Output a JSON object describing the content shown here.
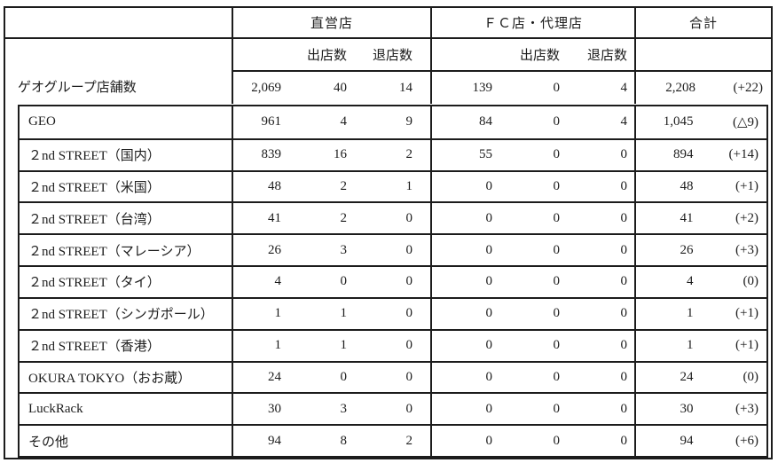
{
  "page": {
    "background": "#ffffff",
    "border_color": "#1c1c1c",
    "text_color": "#1c1c1c"
  },
  "table": {
    "header": {
      "groups": [
        {
          "label": "直営店",
          "open_label": "出店数",
          "close_label": "退店数"
        },
        {
          "label": "ＦＣ店・代理店",
          "open_label": "出店数",
          "close_label": "退店数"
        },
        {
          "label": "合計"
        }
      ]
    },
    "summary_row": {
      "label": "ゲオグループ店舗数",
      "direct_total": "2,069",
      "direct_open": "40",
      "direct_close": "14",
      "fc_total": "139",
      "fc_open": "0",
      "fc_close": "4",
      "total": "2,208",
      "change": "(+22)"
    },
    "rows": [
      {
        "label": "GEO",
        "direct_total": "961",
        "direct_open": "4",
        "direct_close": "9",
        "fc_total": "84",
        "fc_open": "0",
        "fc_close": "4",
        "total": "1,045",
        "change": "(△9)"
      },
      {
        "label": "２nd STREET（国内）",
        "direct_total": "839",
        "direct_open": "16",
        "direct_close": "2",
        "fc_total": "55",
        "fc_open": "0",
        "fc_close": "0",
        "total": "894",
        "change": "(+14)"
      },
      {
        "label": "２nd STREET（米国）",
        "direct_total": "48",
        "direct_open": "2",
        "direct_close": "1",
        "fc_total": "0",
        "fc_open": "0",
        "fc_close": "0",
        "total": "48",
        "change": "(+1)"
      },
      {
        "label": "２nd STREET（台湾）",
        "direct_total": "41",
        "direct_open": "2",
        "direct_close": "0",
        "fc_total": "0",
        "fc_open": "0",
        "fc_close": "0",
        "total": "41",
        "change": "(+2)"
      },
      {
        "label": "２nd STREET（マレーシア）",
        "direct_total": "26",
        "direct_open": "3",
        "direct_close": "0",
        "fc_total": "0",
        "fc_open": "0",
        "fc_close": "0",
        "total": "26",
        "change": "(+3)"
      },
      {
        "label": "２nd STREET（タイ）",
        "direct_total": "4",
        "direct_open": "0",
        "direct_close": "0",
        "fc_total": "0",
        "fc_open": "0",
        "fc_close": "0",
        "total": "4",
        "change": "(0)"
      },
      {
        "label": "２nd STREET（シンガポール）",
        "direct_total": "1",
        "direct_open": "1",
        "direct_close": "0",
        "fc_total": "0",
        "fc_open": "0",
        "fc_close": "0",
        "total": "1",
        "change": "(+1)"
      },
      {
        "label": "２nd STREET（香港）",
        "direct_total": "1",
        "direct_open": "1",
        "direct_close": "0",
        "fc_total": "0",
        "fc_open": "0",
        "fc_close": "0",
        "total": "1",
        "change": "(+1)"
      },
      {
        "label": "OKURA TOKYO（おお蔵）",
        "direct_total": "24",
        "direct_open": "0",
        "direct_close": "0",
        "fc_total": "0",
        "fc_open": "0",
        "fc_close": "0",
        "total": "24",
        "change": "(0)"
      },
      {
        "label": "LuckRack",
        "direct_total": "30",
        "direct_open": "3",
        "direct_close": "0",
        "fc_total": "0",
        "fc_open": "0",
        "fc_close": "0",
        "total": "30",
        "change": "(+3)"
      },
      {
        "label": "その他",
        "direct_total": "94",
        "direct_open": "8",
        "direct_close": "2",
        "fc_total": "0",
        "fc_open": "0",
        "fc_close": "0",
        "total": "94",
        "change": "(+6)"
      }
    ]
  }
}
